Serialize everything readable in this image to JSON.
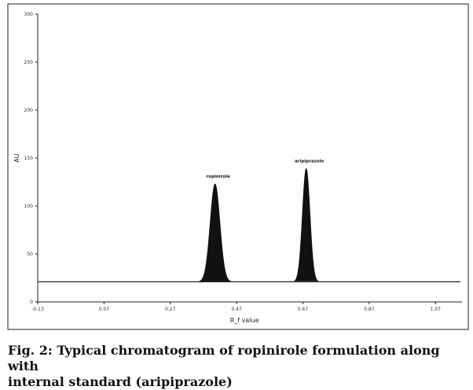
{
  "caption": {
    "line1": "Fig. 2: Typical chromatogram of ropinirole formulation along with",
    "line2": "internal standard (aripiprazole)"
  },
  "chart_data": {
    "type": "line",
    "xlabel": "R_f value",
    "ylabel": "AU",
    "xlim": [
      -0.13,
      1.15
    ],
    "ylim": [
      0,
      300
    ],
    "x_ticks": [
      {
        "value": -0.13,
        "label": "-0.13"
      },
      {
        "value": 0.07,
        "label": "0.07"
      },
      {
        "value": 0.27,
        "label": "0.27"
      },
      {
        "value": 0.47,
        "label": "0.47"
      },
      {
        "value": 0.67,
        "label": "0.67"
      },
      {
        "value": 0.87,
        "label": "0.87"
      },
      {
        "value": 1.07,
        "label": "1.07"
      }
    ],
    "y_ticks": [
      {
        "value": 0,
        "label": "0"
      },
      {
        "value": 50,
        "label": "50"
      },
      {
        "value": 100,
        "label": "100"
      },
      {
        "value": 150,
        "label": "150"
      },
      {
        "value": 200,
        "label": "200"
      },
      {
        "value": 250,
        "label": "250"
      },
      {
        "value": 300,
        "label": "300"
      }
    ],
    "baseline": 21,
    "peaks": [
      {
        "name": "ropinirole",
        "rf": 0.405,
        "height": 102,
        "halfwidth": 0.035
      },
      {
        "name": "aripiprazole",
        "rf": 0.68,
        "height": 118,
        "halfwidth": 0.027
      }
    ],
    "grid": false,
    "legend": "none"
  }
}
